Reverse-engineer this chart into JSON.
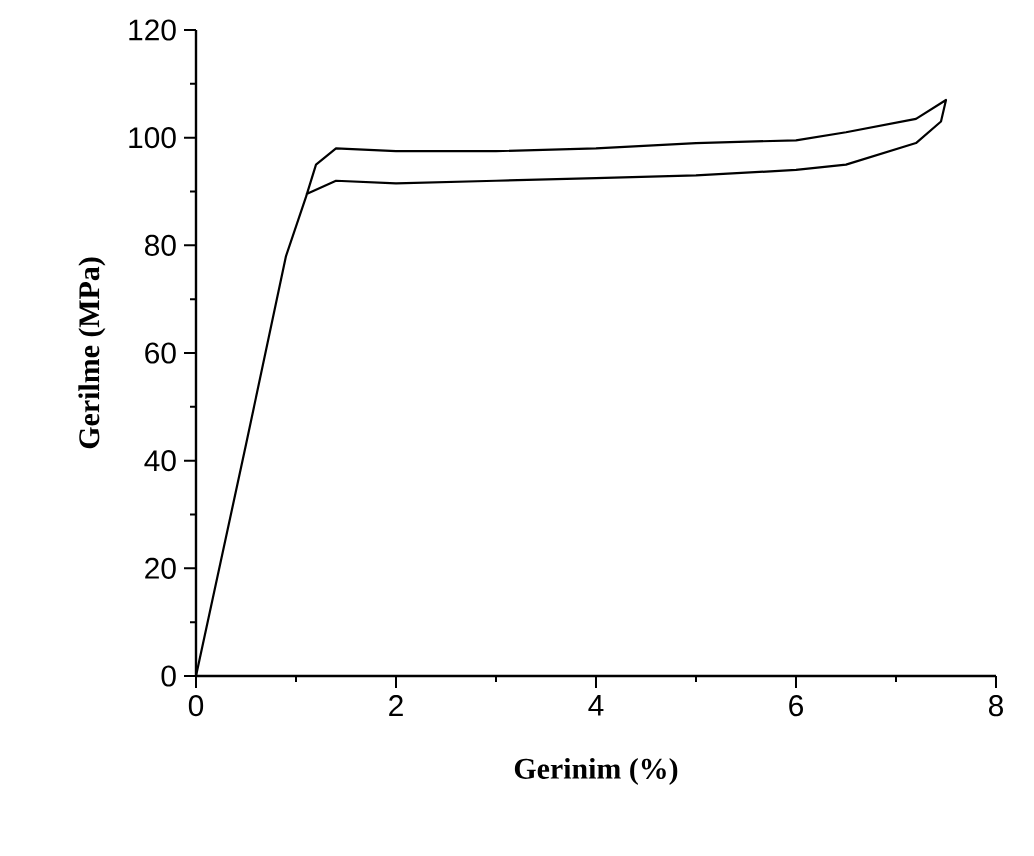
{
  "chart_data": {
    "type": "line",
    "xlabel": "Gerinim (%)",
    "ylabel": "Gerilme (MPa)",
    "xlim": [
      0,
      8
    ],
    "ylim": [
      0,
      120
    ],
    "xticks": [
      0,
      2,
      4,
      6,
      8
    ],
    "yticks": [
      0,
      20,
      40,
      60,
      80,
      100,
      120
    ],
    "series": [
      {
        "color": "#000000",
        "x": [
          0,
          0.5,
          0.9,
          1.1,
          1.2,
          1.4,
          2,
          3,
          4,
          5,
          6,
          6.5,
          7.2,
          7.5,
          7.45,
          7.2,
          6.5,
          6,
          5,
          4,
          3,
          2,
          1.4,
          1.1
        ],
        "values": [
          0,
          43,
          78,
          89,
          95,
          98,
          97.5,
          97.5,
          98,
          99,
          99.5,
          101,
          103.5,
          107,
          103,
          99,
          95,
          94,
          93,
          92.5,
          92,
          91.5,
          92,
          89.5
        ]
      }
    ]
  }
}
